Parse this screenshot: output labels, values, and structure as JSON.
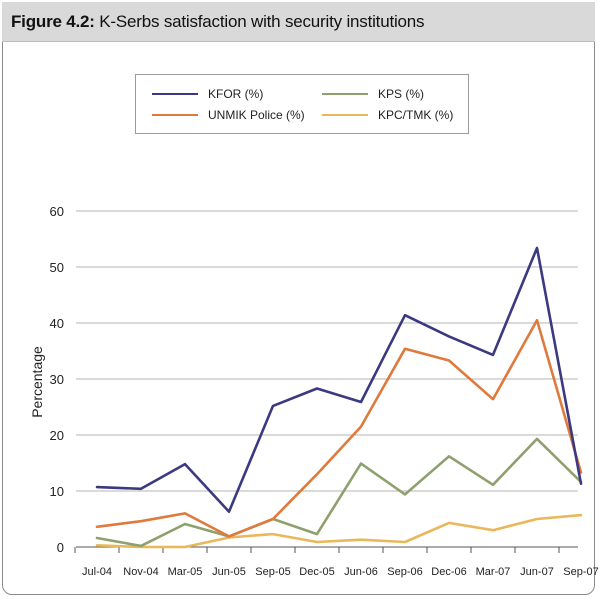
{
  "figure": {
    "label": "Figure 4.2:",
    "title": "K-Serbs satisfaction with security institutions"
  },
  "colors": {
    "kfor": "#3b3980",
    "unmik": "#e07a3c",
    "kps": "#8ea06e",
    "kpc": "#e8b85a",
    "grid": "#b5b5b5",
    "header_bg": "#d9d9d9"
  },
  "chart_data": {
    "type": "line",
    "title": "",
    "xlabel": "",
    "ylabel": "Percentage",
    "ylim": [
      0,
      60
    ],
    "yticks": [
      0,
      10,
      20,
      30,
      40,
      50,
      60
    ],
    "grid": true,
    "legend_position": "top",
    "categories": [
      "Jul-04",
      "Nov-04",
      "Mar-05",
      "Jun-05",
      "Sep-05",
      "Dec-05",
      "Jun-06",
      "Sep-06",
      "Dec-06",
      "Mar-07",
      "Jun-07",
      "Sep-07"
    ],
    "series": [
      {
        "name": "KFOR (%)",
        "color_key": "kfor",
        "x": [
          0,
          1,
          2,
          3,
          4,
          5,
          6,
          7,
          8,
          9,
          10,
          11
        ],
        "values": [
          10.7,
          10.4,
          14.8,
          6.3,
          25.2,
          28.3,
          25.9,
          41.4,
          37.6,
          34.3,
          53.4,
          11.3
        ]
      },
      {
        "name": "UNMIK Police (%)",
        "color_key": "unmik",
        "x": [
          0,
          1,
          2,
          3,
          4,
          5,
          6,
          7,
          8,
          9,
          10,
          11
        ],
        "values": [
          3.6,
          4.6,
          6.0,
          1.9,
          5.0,
          13.0,
          21.5,
          35.4,
          33.3,
          26.4,
          40.5,
          13.3
        ]
      },
      {
        "name": "KPS (%)",
        "color_key": "kps",
        "x": [
          0,
          1,
          2,
          3,
          4,
          5,
          6,
          7,
          8,
          9,
          10,
          11
        ],
        "values": [
          1.6,
          0.2,
          4.1,
          1.9,
          5.0,
          2.3,
          14.9,
          9.4,
          16.2,
          11.1,
          19.3,
          11.6
        ]
      },
      {
        "name": "KPC/TMK (%)",
        "color_key": "kpc",
        "x": [
          0,
          1,
          2,
          3,
          4,
          5,
          6,
          7,
          8,
          9,
          10,
          11
        ],
        "values": [
          0.3,
          0.0,
          0.0,
          1.7,
          2.3,
          0.9,
          1.3,
          0.9,
          4.3,
          3.0,
          5.0,
          5.7
        ]
      }
    ]
  }
}
